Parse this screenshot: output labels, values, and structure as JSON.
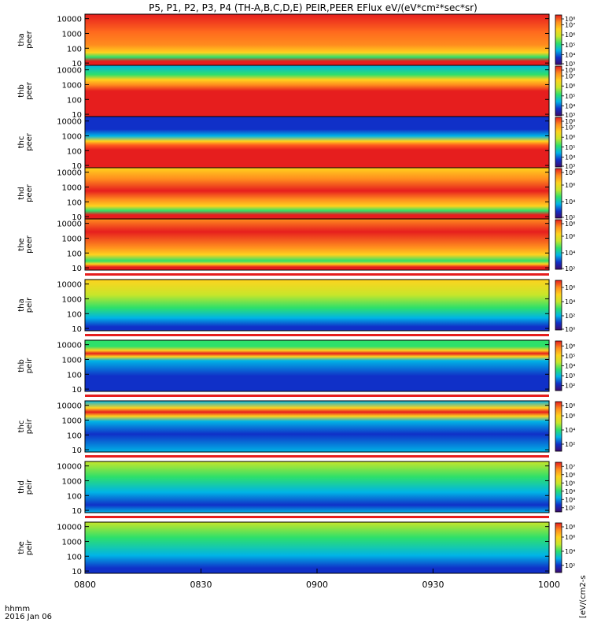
{
  "chart_data": {
    "type": "heatmap",
    "title": "P5, P1, P2, P3, P4 (TH-A,B,C,D,E) PEIR,PEER EFlux eV/(eV*cm²*sec*sr)",
    "xaxis": {
      "tick_labels": [
        "0800",
        "0830",
        "0900",
        "0930",
        "1000"
      ],
      "range": [
        "0800",
        "1000"
      ],
      "label_line1": "hhmm",
      "label_line2": "2016 Jan 06"
    },
    "yaxis": {
      "scale": "log",
      "range_eV": [
        7,
        20000
      ],
      "tick_labels": [
        "10000",
        "1000",
        "100",
        "10"
      ]
    },
    "colorbar": {
      "scale": "log",
      "units": "eV/(eV*cm²*sec*sr)",
      "units_label": "[eV/(cm2-s",
      "colormap": [
        "#3c0a6e",
        "#1030c8",
        "#00b4e6",
        "#2ee06a",
        "#c8e62a",
        "#ffd21e",
        "#ff8c1e",
        "#e61e1e"
      ]
    },
    "panels": [
      {
        "probe": "tha",
        "quantity": "peer",
        "label": "tha\npeer",
        "cbar_ticks": [
          "10⁸",
          "10⁷",
          "10⁶",
          "10⁵",
          "10⁴",
          "10³"
        ],
        "cbar_range": [
          3,
          8
        ]
      },
      {
        "probe": "thb",
        "quantity": "peer",
        "label": "thb\npeer",
        "cbar_ticks": [
          "10⁸",
          "10⁷",
          "10⁶",
          "10⁵",
          "10⁴",
          "10³"
        ],
        "cbar_range": [
          3,
          8
        ]
      },
      {
        "probe": "thc",
        "quantity": "peer",
        "label": "thc\npeer",
        "cbar_ticks": [
          "10⁸",
          "10⁷",
          "10⁶",
          "10⁵",
          "10⁴",
          "10³"
        ],
        "cbar_range": [
          3,
          8
        ]
      },
      {
        "probe": "thd",
        "quantity": "peer",
        "label": "thd\npeer",
        "cbar_ticks": [
          "10⁸",
          "10⁶",
          "10⁴",
          "10²"
        ],
        "cbar_range": [
          2,
          8
        ]
      },
      {
        "probe": "the",
        "quantity": "peer",
        "label": "the\npeer",
        "cbar_ticks": [
          "10⁸",
          "10⁶",
          "10⁴",
          "10²"
        ],
        "cbar_range": [
          2,
          8
        ]
      },
      {
        "probe": "tha",
        "quantity": "peir",
        "label": "tha\npeir",
        "cbar_ticks": [
          "10⁶",
          "10⁴",
          "10²",
          "10⁰"
        ],
        "cbar_range": [
          0,
          7
        ]
      },
      {
        "probe": "thb",
        "quantity": "peir",
        "label": "thb\npeir",
        "cbar_ticks": [
          "10⁶",
          "10⁵",
          "10⁴",
          "10³",
          "10²"
        ],
        "cbar_range": [
          1.5,
          6.5
        ]
      },
      {
        "probe": "thc",
        "quantity": "peir",
        "label": "thc\npeir",
        "cbar_ticks": [
          "10⁸",
          "10⁶",
          "10⁴",
          "10²"
        ],
        "cbar_range": [
          1,
          8
        ]
      },
      {
        "probe": "thd",
        "quantity": "peir",
        "label": "thd\npeir",
        "cbar_ticks": [
          "10⁷",
          "10⁶",
          "10⁵",
          "10⁴",
          "10³",
          "10²"
        ],
        "cbar_range": [
          1.5,
          7.5
        ]
      },
      {
        "probe": "the",
        "quantity": "peir",
        "label": "the\npeir",
        "cbar_ticks": [
          "10⁸",
          "10⁶",
          "10⁴",
          "10²"
        ],
        "cbar_range": [
          1,
          8
        ]
      }
    ]
  }
}
